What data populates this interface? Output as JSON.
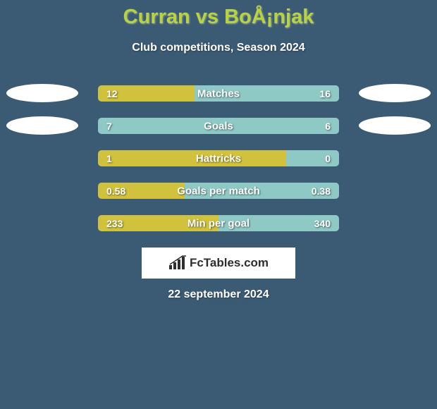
{
  "colors": {
    "page_bg": "#3b5a74",
    "title": "#b8d43a",
    "white": "#ffffff",
    "bar_green": "#d1c23e",
    "bar_teal": "#8fc9c6",
    "track": "#3a5e79",
    "ellipse": "#ffffff",
    "logo_bg": "#ffffff",
    "logo_text": "#2e2e2e"
  },
  "header": {
    "title": "Curran vs BoÅ¡njak",
    "subtitle": "Club competitions, Season 2024"
  },
  "chart": {
    "bar_track_width": 342,
    "rows": [
      {
        "label": "Matches",
        "left_value": "12",
        "right_value": "16",
        "show_left_ellipse": true,
        "show_right_ellipse": true,
        "left_width_pct": 40,
        "right_width_pct": 60
      },
      {
        "label": "Goals",
        "left_value": "7",
        "right_value": "6",
        "show_left_ellipse": true,
        "show_right_ellipse": true,
        "left_width_pct": 0,
        "right_width_pct": 100
      },
      {
        "label": "Hattricks",
        "left_value": "1",
        "right_value": "0",
        "show_left_ellipse": false,
        "show_right_ellipse": false,
        "left_width_pct": 78,
        "right_width_pct": 22
      },
      {
        "label": "Goals per match",
        "left_value": "0.58",
        "right_value": "0.38",
        "show_left_ellipse": false,
        "show_right_ellipse": false,
        "left_width_pct": 36,
        "right_width_pct": 64
      },
      {
        "label": "Min per goal",
        "left_value": "233",
        "right_value": "340",
        "show_left_ellipse": false,
        "show_right_ellipse": false,
        "left_width_pct": 50,
        "right_width_pct": 50
      }
    ]
  },
  "logo": {
    "text": "FcTables.com"
  },
  "date": "22 september 2024"
}
